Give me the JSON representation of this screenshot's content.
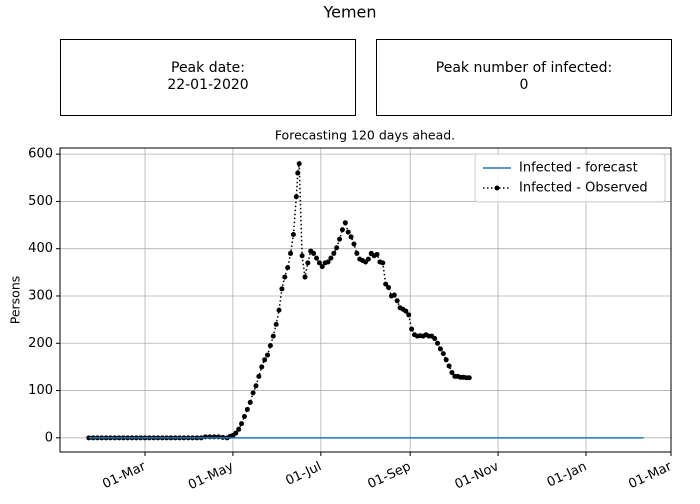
{
  "title": "Yemen",
  "boxes": [
    {
      "label": "Peak date:",
      "value": "22-01-2020"
    },
    {
      "label": "Peak number of infected:",
      "value": "0"
    }
  ],
  "chart_data": {
    "type": "line",
    "title": "Forecasting 120 days ahead.",
    "ylabel": "Persons",
    "xlim": [
      "2020-01-02",
      "2021-03-01"
    ],
    "xticks": [
      {
        "value": "2020-03-01",
        "label": "01-Mar"
      },
      {
        "value": "2020-05-01",
        "label": "01-May"
      },
      {
        "value": "2020-07-01",
        "label": "01-Jul"
      },
      {
        "value": "2020-09-01",
        "label": "01-Sep"
      },
      {
        "value": "2020-11-01",
        "label": "01-Nov"
      },
      {
        "value": "2021-01-01",
        "label": "01-Jan"
      },
      {
        "value": "2021-03-01",
        "label": "01-Mar"
      }
    ],
    "ylim": [
      -30,
      613
    ],
    "yticks": [
      0,
      100,
      200,
      300,
      400,
      500,
      600
    ],
    "grid": true,
    "legend": "upper right",
    "series": [
      {
        "name": "Infected - forecast",
        "color": "#1f77b4",
        "style": "solid",
        "x": [
          "2020-01-22",
          "2021-02-10"
        ],
        "values": [
          0,
          0
        ]
      },
      {
        "name": "Infected - Observed",
        "color": "#000000",
        "style": "dotted-markers",
        "x": [
          "2020-01-22",
          "2020-01-25",
          "2020-01-28",
          "2020-01-31",
          "2020-02-03",
          "2020-02-06",
          "2020-02-09",
          "2020-02-12",
          "2020-02-15",
          "2020-02-18",
          "2020-02-21",
          "2020-02-24",
          "2020-02-27",
          "2020-03-01",
          "2020-03-04",
          "2020-03-07",
          "2020-03-10",
          "2020-03-13",
          "2020-03-16",
          "2020-03-19",
          "2020-03-22",
          "2020-03-25",
          "2020-03-28",
          "2020-03-31",
          "2020-04-03",
          "2020-04-06",
          "2020-04-09",
          "2020-04-12",
          "2020-04-15",
          "2020-04-18",
          "2020-04-21",
          "2020-04-24",
          "2020-04-27",
          "2020-04-29",
          "2020-05-01",
          "2020-05-03",
          "2020-05-05",
          "2020-05-07",
          "2020-05-09",
          "2020-05-11",
          "2020-05-13",
          "2020-05-15",
          "2020-05-17",
          "2020-05-19",
          "2020-05-21",
          "2020-05-23",
          "2020-05-25",
          "2020-05-27",
          "2020-05-29",
          "2020-05-31",
          "2020-06-02",
          "2020-06-04",
          "2020-06-06",
          "2020-06-08",
          "2020-06-10",
          "2020-06-12",
          "2020-06-14",
          "2020-06-15",
          "2020-06-16",
          "2020-06-18",
          "2020-06-20",
          "2020-06-22",
          "2020-06-24",
          "2020-06-26",
          "2020-06-28",
          "2020-06-30",
          "2020-07-02",
          "2020-07-04",
          "2020-07-06",
          "2020-07-08",
          "2020-07-10",
          "2020-07-12",
          "2020-07-14",
          "2020-07-16",
          "2020-07-18",
          "2020-07-20",
          "2020-07-22",
          "2020-07-24",
          "2020-07-26",
          "2020-07-28",
          "2020-07-30",
          "2020-08-01",
          "2020-08-03",
          "2020-08-05",
          "2020-08-07",
          "2020-08-09",
          "2020-08-11",
          "2020-08-13",
          "2020-08-15",
          "2020-08-17",
          "2020-08-19",
          "2020-08-21",
          "2020-08-23",
          "2020-08-25",
          "2020-08-27",
          "2020-08-29",
          "2020-08-31",
          "2020-09-02",
          "2020-09-04",
          "2020-09-06",
          "2020-09-08",
          "2020-09-10",
          "2020-09-12",
          "2020-09-14",
          "2020-09-16",
          "2020-09-18",
          "2020-09-20",
          "2020-09-22",
          "2020-09-24",
          "2020-09-26",
          "2020-09-28",
          "2020-09-30",
          "2020-10-02",
          "2020-10-04",
          "2020-10-06",
          "2020-10-08",
          "2020-10-10",
          "2020-10-12"
        ],
        "values": [
          0,
          0,
          0,
          0,
          0,
          0,
          0,
          0,
          0,
          0,
          0,
          0,
          0,
          0,
          0,
          0,
          0,
          0,
          0,
          0,
          0,
          0,
          0,
          0,
          0,
          0,
          0,
          2,
          2,
          2,
          2,
          1,
          0,
          3,
          5,
          10,
          18,
          30,
          45,
          60,
          75,
          95,
          110,
          130,
          150,
          165,
          175,
          195,
          215,
          240,
          270,
          315,
          340,
          360,
          390,
          430,
          510,
          560,
          580,
          385,
          340,
          370,
          395,
          390,
          380,
          370,
          362,
          370,
          372,
          380,
          390,
          402,
          420,
          440,
          455,
          435,
          425,
          410,
          390,
          378,
          375,
          372,
          378,
          390,
          385,
          388,
          372,
          370,
          325,
          318,
          300,
          302,
          290,
          275,
          272,
          268,
          260,
          230,
          218,
          215,
          216,
          215,
          218,
          215,
          215,
          210,
          200,
          188,
          178,
          165,
          152,
          138,
          130,
          130,
          128,
          128,
          127,
          127
        ]
      }
    ]
  }
}
